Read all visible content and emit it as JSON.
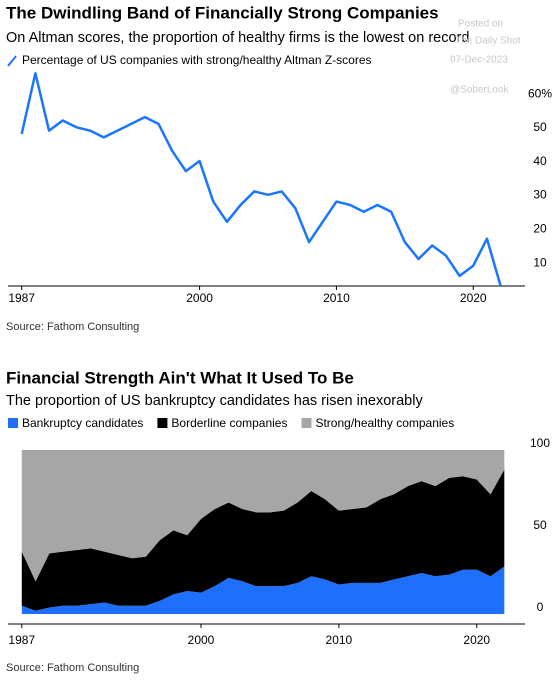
{
  "chart_data": [
    {
      "type": "line",
      "title": "The Dwindling Band of Financially Strong Companies",
      "subtitle": "On Altman scores, the proportion of healthy firms is the lowest on record",
      "source": "Source: Fathom Consulting",
      "annotations": [
        "Posted on",
        "The Daily Shot",
        "07-Dec-2023",
        "@SoberLook"
      ],
      "x": [
        1987,
        1988,
        1989,
        1990,
        1991,
        1992,
        1993,
        1994,
        1995,
        1996,
        1997,
        1998,
        1999,
        2000,
        2001,
        2002,
        2003,
        2004,
        2005,
        2006,
        2007,
        2008,
        2009,
        2010,
        2011,
        2012,
        2013,
        2014,
        2015,
        2016,
        2017,
        2018,
        2019,
        2020,
        2021,
        2022
      ],
      "series": [
        {
          "name": "Percentage of US companies with strong/healthy Altman Z-scores",
          "color": "#1a75ff",
          "values": [
            50,
            68,
            51,
            54,
            52,
            51,
            49,
            51,
            53,
            55,
            53,
            45,
            39,
            42,
            30,
            24,
            29,
            33,
            32,
            33,
            28,
            18,
            24,
            30,
            29,
            27,
            29,
            27,
            18,
            13,
            17,
            14,
            8,
            11,
            19,
            5
          ]
        }
      ],
      "xlim": [
        1986,
        2024
      ],
      "xticks": [
        1987,
        2000,
        2010,
        2020
      ],
      "ylim": [
        5,
        66
      ],
      "yticks": [
        10,
        20,
        30,
        40,
        50,
        {
          "value": 60,
          "label": "60%"
        }
      ],
      "grid": false
    },
    {
      "type": "stacked_area",
      "title": "Financial Strength Ain't What It Used To Be",
      "subtitle": "The proportion of US bankruptcy candidates has risen inexorably",
      "source": "Source: Fathom Consulting",
      "x": [
        1987,
        1988,
        1989,
        1990,
        1991,
        1992,
        1993,
        1994,
        1995,
        1996,
        1997,
        1998,
        1999,
        2000,
        2001,
        2002,
        2003,
        2004,
        2005,
        2006,
        2007,
        2008,
        2009,
        2010,
        2011,
        2012,
        2013,
        2014,
        2015,
        2016,
        2017,
        2018,
        2019,
        2020,
        2021,
        2022
      ],
      "series": [
        {
          "name": "Bankruptcy candidates",
          "color": "#1f6fff",
          "values": [
            5,
            2,
            4,
            5,
            5,
            6,
            7,
            5,
            5,
            5,
            8,
            12,
            14,
            13,
            17,
            22,
            20,
            17,
            17,
            17,
            19,
            23,
            21,
            18,
            19,
            19,
            19,
            21,
            23,
            25,
            23,
            24,
            27,
            27,
            23,
            29
          ]
        },
        {
          "name": "Borderline companies",
          "color": "#000000",
          "values": [
            33,
            18,
            33,
            33,
            34,
            34,
            31,
            31,
            29,
            30,
            37,
            39,
            34,
            45,
            47,
            46,
            44,
            45,
            45,
            46,
            49,
            52,
            49,
            45,
            45,
            46,
            51,
            52,
            55,
            56,
            55,
            59,
            57,
            55,
            50,
            59
          ]
        },
        {
          "name": "Strong/healthy companies",
          "color": "#a6a6a6",
          "values": [
            62,
            80,
            63,
            62,
            61,
            60,
            62,
            64,
            66,
            65,
            55,
            49,
            52,
            42,
            36,
            32,
            36,
            38,
            38,
            37,
            32,
            25,
            30,
            37,
            36,
            35,
            30,
            27,
            22,
            19,
            22,
            17,
            16,
            18,
            27,
            12
          ]
        }
      ],
      "xlim": [
        1986,
        2023.5
      ],
      "xticks": [
        1987,
        2000,
        2010,
        2020
      ],
      "ylim": [
        0,
        100
      ],
      "yticks": [
        0,
        50,
        100
      ],
      "grid": false
    }
  ]
}
